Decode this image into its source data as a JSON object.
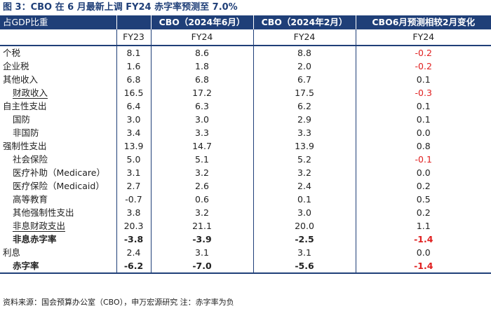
{
  "title": "图 3：CBO 在 6 月最新上调 FY24 赤字率预测至 7.0%",
  "headers": [
    "占GDP比重",
    "",
    "CBO（2024年6月）",
    "CBO（2024年2月）",
    "CBO6月预测相较2月变化"
  ],
  "subheaders": [
    "",
    "FY23",
    "FY24",
    "FY24",
    "FY24"
  ],
  "rows": [
    {
      "label": "个税",
      "values": [
        "8.1",
        "8.6",
        "8.8",
        "-0.2"
      ]
    },
    {
      "label": "企业税",
      "values": [
        "1.6",
        "1.8",
        "2.0",
        "-0.2"
      ]
    },
    {
      "label": "其他收入",
      "values": [
        "6.8",
        "6.8",
        "6.7",
        "0.1"
      ]
    },
    {
      "label": "财政收入",
      "values": [
        "16.5",
        "17.2",
        "17.5",
        "-0.3"
      ]
    },
    {
      "label": "自主性支出",
      "values": [
        "6.4",
        "6.3",
        "6.2",
        "0.1"
      ]
    },
    {
      "label": "国防",
      "values": [
        "3.0",
        "3.0",
        "2.9",
        "0.1"
      ]
    },
    {
      "label": "非国防",
      "values": [
        "3.4",
        "3.3",
        "3.3",
        "0.0"
      ]
    },
    {
      "label": "强制性支出",
      "values": [
        "13.9",
        "14.7",
        "13.9",
        "0.8"
      ]
    },
    {
      "label": "社会保险",
      "values": [
        "5.0",
        "5.1",
        "5.2",
        "-0.1"
      ]
    },
    {
      "label": "医疗补助（Medicare）",
      "values": [
        "3.1",
        "3.2",
        "3.2",
        "0.0"
      ]
    },
    {
      "label": "医疗保险（Medicaid）",
      "values": [
        "2.7",
        "2.6",
        "2.4",
        "0.2"
      ]
    },
    {
      "label": "高等教育",
      "values": [
        "-0.7",
        "0.6",
        "0.1",
        "0.5"
      ]
    },
    {
      "label": "其他强制性支出",
      "values": [
        "3.8",
        "3.2",
        "3.0",
        "0.2"
      ]
    },
    {
      "label": "非息财政支出",
      "values": [
        "20.3",
        "21.1",
        "20.0",
        "1.1"
      ]
    },
    {
      "label": "非息赤字率",
      "values": [
        "-3.8",
        "-3.9",
        "-2.5",
        "-1.4"
      ]
    },
    {
      "label": "利息",
      "values": [
        "2.4",
        "3.1",
        "3.1",
        "0.0"
      ]
    },
    {
      "label": "赤字率",
      "values": [
        "-6.2",
        "-7.0",
        "-5.6",
        "-1.4"
      ]
    }
  ],
  "source": "资料来源：国会预算办公室（CBO），申万宏源研究      注：赤字率为负",
  "colors": {
    "header_bg": "#1f3f78",
    "title": "#1f3f78",
    "negative_change": "#e02020"
  }
}
